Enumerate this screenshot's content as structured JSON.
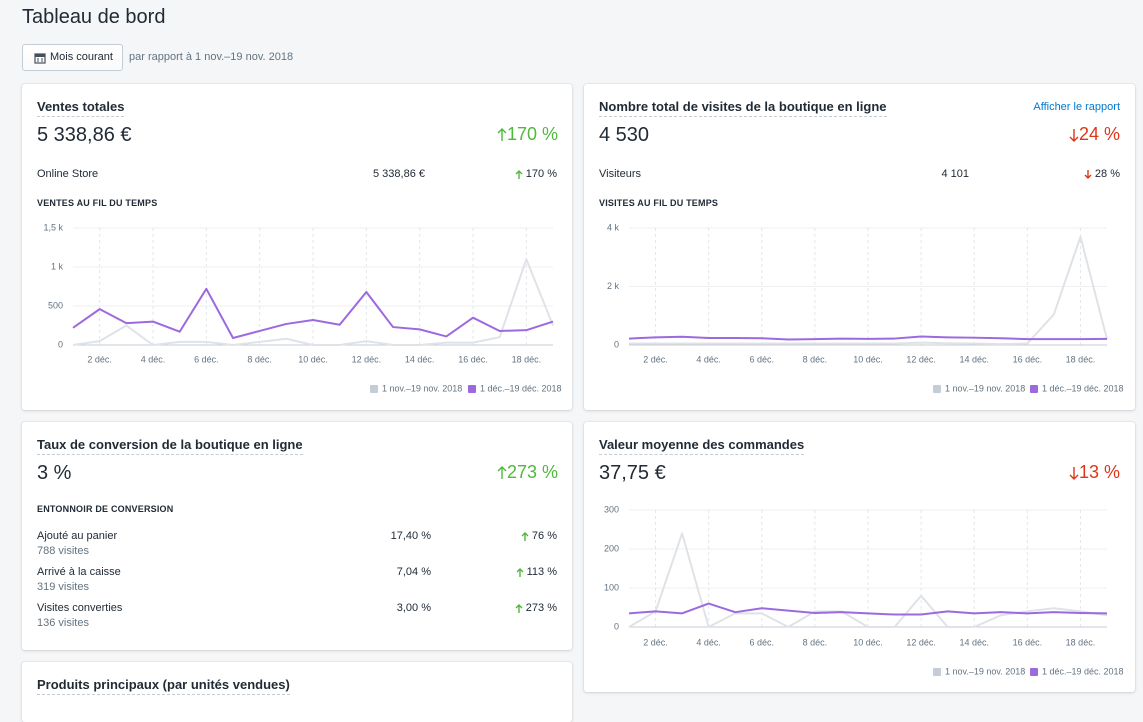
{
  "header": {
    "title": "Tableau de bord",
    "button": "Mois courant",
    "compare": "par rapport à 1 nov.–19 nov. 2018"
  },
  "sales": {
    "title": "Ventes totales",
    "value": "5 338,86 €",
    "change": "170 %",
    "row": {
      "label": "Online Store",
      "value": "5 338,86 €",
      "change": "170 %"
    },
    "subtitle": "VENTES AU FIL DU TEMPS",
    "chart": {
      "type": "line",
      "categories": [
        null,
        "2 déc.",
        null,
        "4 déc.",
        null,
        "6 déc.",
        null,
        "8 déc.",
        null,
        "10 déc.",
        null,
        "12 déc.",
        null,
        "14 déc.",
        null,
        "16 déc.",
        null,
        "18 déc.",
        null
      ],
      "series": [
        {
          "name": "1 nov.–19 nov. 2018",
          "color": "#dfe3e8",
          "values": [
            0,
            50,
            250,
            0,
            40,
            40,
            0,
            40,
            80,
            0,
            0,
            50,
            0,
            0,
            30,
            30,
            100,
            1100,
            250
          ]
        },
        {
          "name": "1 déc.–19 déc. 2018",
          "color": "#9c6ade",
          "values": [
            220,
            460,
            280,
            300,
            170,
            720,
            90,
            180,
            270,
            320,
            260,
            680,
            230,
            200,
            110,
            350,
            180,
            190,
            300
          ]
        }
      ],
      "ylim": [
        0,
        1500
      ],
      "yticks": [
        0,
        500,
        {
          "value": 1000,
          "label": "1 k"
        },
        {
          "value": 1500,
          "label": "1,5 k"
        }
      ]
    }
  },
  "visits": {
    "title": "Nombre total de visites de la boutique en ligne",
    "link": "Afficher le rapport",
    "value": "4 530",
    "change": "24 %",
    "row": {
      "label": "Visiteurs",
      "value": "4 101",
      "change": "28 %"
    },
    "subtitle": "VISITES AU FIL DU TEMPS",
    "chart": {
      "type": "line",
      "categories": [
        null,
        "2 déc.",
        null,
        "4 déc.",
        null,
        "6 déc.",
        null,
        "8 déc.",
        null,
        "10 déc.",
        null,
        "12 déc.",
        null,
        "14 déc.",
        null,
        "16 déc.",
        null,
        "18 déc.",
        null
      ],
      "series": [
        {
          "name": "1 nov.–19 nov. 2018",
          "color": "#dfe3e8",
          "values": [
            50,
            50,
            50,
            50,
            50,
            50,
            50,
            50,
            50,
            50,
            50,
            80,
            60,
            50,
            30,
            50,
            1050,
            3700,
            200
          ]
        },
        {
          "name": "1 déc.–19 déc. 2018",
          "color": "#9c6ade",
          "values": [
            220,
            260,
            280,
            240,
            240,
            230,
            190,
            200,
            220,
            210,
            220,
            290,
            260,
            250,
            230,
            200,
            200,
            200,
            210
          ]
        }
      ],
      "ylim": [
        0,
        4000
      ],
      "yticks": [
        0,
        {
          "value": 2000,
          "label": "2 k"
        },
        {
          "value": 4000,
          "label": "4 k"
        }
      ]
    }
  },
  "conversion": {
    "title": "Taux de conversion de la boutique en ligne",
    "value": "3 %",
    "change": "273 %",
    "subtitle": "ENTONNOIR DE CONVERSION",
    "rows": [
      {
        "label": "Ajouté au panier",
        "sub": "788 visites",
        "value": "17,40 %",
        "change": "76 %"
      },
      {
        "label": "Arrivé à la caisse",
        "sub": "319 visites",
        "value": "7,04 %",
        "change": "113 %"
      },
      {
        "label": "Visites converties",
        "sub": "136 visites",
        "value": "3,00 %",
        "change": "273 %"
      }
    ]
  },
  "aov": {
    "title": "Valeur moyenne des commandes",
    "value": "37,75 €",
    "change": "13 %",
    "chart": {
      "type": "line",
      "categories": [
        null,
        "2 déc.",
        null,
        "4 déc.",
        null,
        "6 déc.",
        null,
        "8 déc.",
        null,
        "10 déc.",
        null,
        "12 déc.",
        null,
        "14 déc.",
        null,
        "16 déc.",
        null,
        "18 déc.",
        null
      ],
      "series": [
        {
          "name": "1 nov.–19 nov. 2018",
          "color": "#dfe3e8",
          "values": [
            0,
            40,
            240,
            0,
            35,
            35,
            0,
            40,
            40,
            0,
            0,
            80,
            0,
            0,
            30,
            40,
            48,
            40,
            30
          ]
        },
        {
          "name": "1 déc.–19 déc. 2018",
          "color": "#9c6ade",
          "values": [
            35,
            40,
            35,
            60,
            38,
            48,
            42,
            36,
            38,
            35,
            32,
            32,
            40,
            35,
            38,
            35,
            38,
            36,
            35
          ]
        }
      ],
      "ylim": [
        0,
        300
      ],
      "yticks": [
        0,
        100,
        200,
        300
      ]
    }
  },
  "products": {
    "title": "Produits principaux (par unités vendues)"
  }
}
